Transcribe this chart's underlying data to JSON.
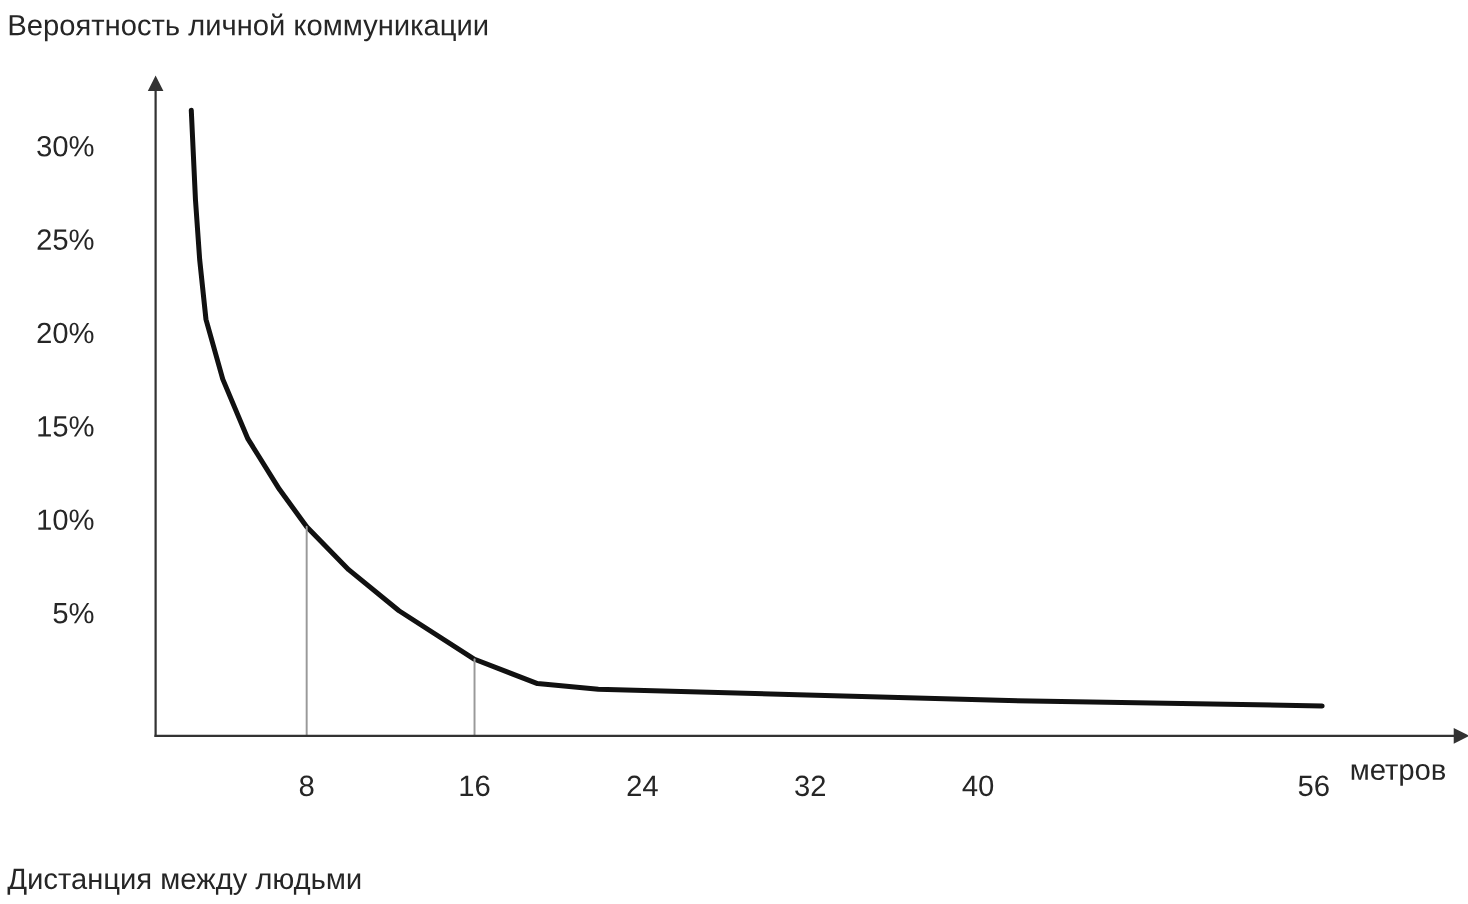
{
  "chart_data": {
    "type": "line",
    "ylabel": "Вероятность личной коммуникации",
    "xlabel": "метров",
    "annotations": [
      "Дистанция между людьми"
    ],
    "x": [
      2.5,
      2.7,
      2.9,
      3.2,
      4.0,
      5.2,
      6.7,
      8,
      10,
      12.4,
      16,
      19,
      21.9,
      31.4,
      41,
      56.4
    ],
    "series": [
      {
        "color": "#111111",
        "values": [
          31.9,
          27.1,
          23.9,
          20.7,
          17.5,
          14.3,
          11.6,
          9.6,
          7.3,
          5.1,
          2.5,
          1.2,
          0.9,
          0.6,
          0.3,
          0.0
        ]
      }
    ],
    "xlim": [
      0.8,
      63
    ],
    "xticks": [
      8,
      16,
      24,
      32,
      40,
      56
    ],
    "ylim": [
      -1.6,
      33.3
    ],
    "yticks": [
      {
        "value": 5,
        "label": "5%"
      },
      {
        "value": 10,
        "label": "10%"
      },
      {
        "value": 15,
        "label": "15%"
      },
      {
        "value": 20,
        "label": "20%"
      },
      {
        "value": 25,
        "label": "25%"
      },
      {
        "value": 30,
        "label": "30%"
      }
    ],
    "ref_lines": [
      {
        "axis": "x",
        "value": 8,
        "color": "#999999"
      },
      {
        "axis": "x",
        "value": 16,
        "color": "#999999"
      }
    ],
    "grid": false,
    "legend": false,
    "marker": "none",
    "line_style": "solid"
  }
}
